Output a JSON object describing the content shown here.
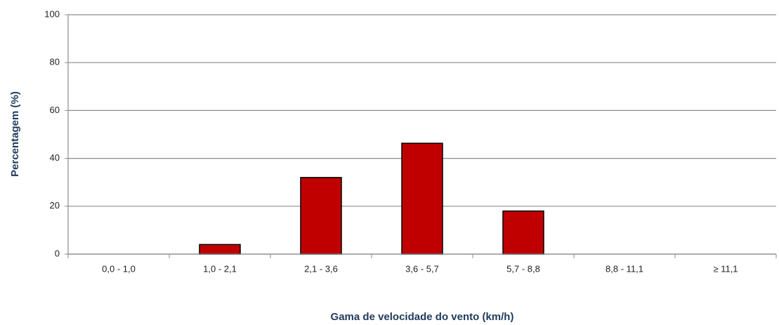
{
  "chart_data": {
    "type": "bar",
    "x_label": "Gama de velocidade do vento (km/h)",
    "y_label": "Percentagem (%)",
    "categories": [
      "0,0 - 1,0",
      "1,0 - 2,1",
      "2,1 - 3,6",
      "3,6 - 5,7",
      "5,7 - 8,8",
      "8,8 - 11,1",
      "≥ 11,1"
    ],
    "values": [
      0,
      4,
      32,
      46.3,
      18,
      0,
      0
    ],
    "color": "#c00000",
    "ylim": [
      0,
      100
    ],
    "yticks": [
      0,
      20,
      40,
      60,
      80,
      100
    ],
    "grid": true
  }
}
